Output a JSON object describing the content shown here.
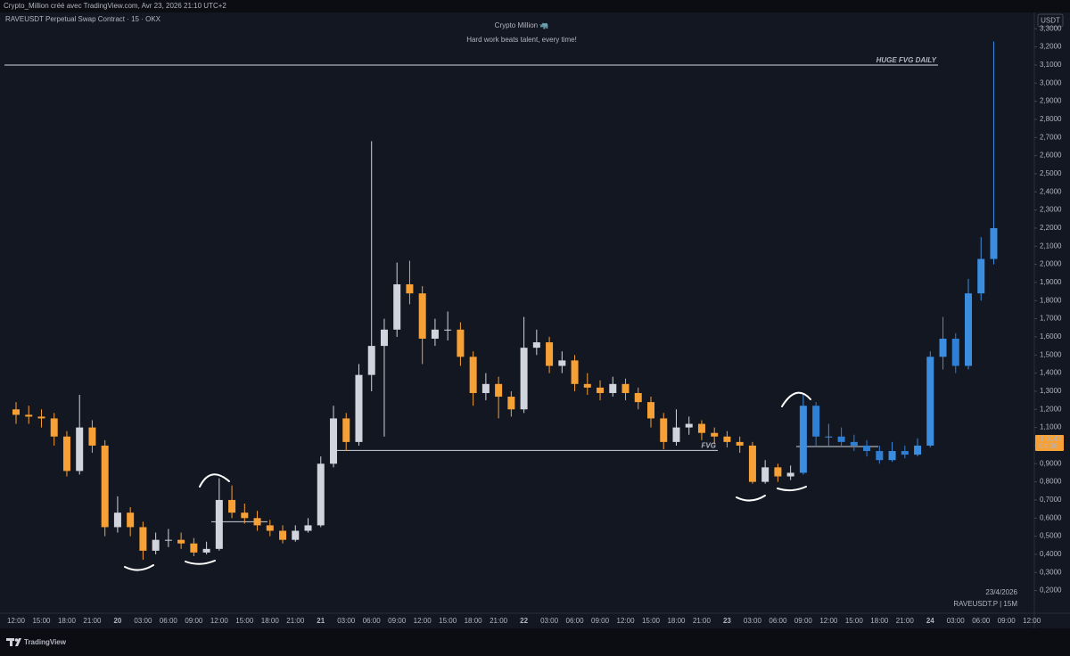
{
  "chart_data": {
    "type": "candlestick",
    "attribution": "Crypto_Million créé avec TradingView.com, Avr 23, 2026 21:10 UTC+2",
    "symbol": "RAVEUSDT Perpetual Swap Contract · 15 · OKX",
    "title": "Crypto Million 🦏",
    "subtitle": "Hard work beats talent, every time!",
    "currency": "USDT",
    "date_label": "23/4/2026",
    "symbol_short": "RAVEUSDT.P | 15M",
    "brand": "TradingView",
    "grid": false,
    "categories": [
      "12:00",
      null,
      "15:00",
      null,
      "18:00",
      null,
      "21:00",
      null,
      "20",
      null,
      "03:00",
      null,
      "06:00",
      null,
      "09:00",
      null,
      "12:00",
      null,
      "15:00",
      null,
      "18:00",
      null,
      "21:00",
      null,
      "21",
      null,
      "03:00",
      null,
      "06:00",
      null,
      "09:00",
      null,
      "12:00",
      null,
      "15:00",
      null,
      "18:00",
      null,
      "21:00",
      null,
      "22",
      null,
      "03:00",
      null,
      "06:00",
      null,
      "09:00",
      null,
      "12:00",
      null,
      "15:00",
      null,
      "18:00",
      null,
      "21:00",
      null,
      "23",
      null,
      "03:00",
      null,
      "06:00",
      null,
      "09:00",
      null,
      "12:00",
      null,
      "15:00",
      null,
      "18:00",
      null,
      "21:00",
      null,
      "24",
      null,
      "03:00",
      null,
      "06:00",
      null,
      "09:00",
      null,
      "12:00"
    ],
    "series": [
      {
        "up_color": "#d1d4dc",
        "down_color": "#f7a035",
        "open": [
          1.2,
          1.17,
          1.16,
          1.15,
          1.05,
          0.86,
          1.1,
          1.0,
          0.55,
          0.63,
          0.55,
          0.42,
          0.48,
          0.48,
          0.46,
          0.41,
          0.43,
          0.7,
          0.63,
          0.6,
          0.56,
          0.53,
          0.48,
          0.53,
          0.56,
          0.9,
          1.15,
          1.02,
          1.39,
          1.55,
          1.64,
          1.89,
          1.84,
          1.59,
          1.64,
          1.64,
          1.49,
          1.29,
          1.34,
          1.27,
          1.2,
          1.54,
          1.57,
          1.44,
          1.47,
          1.34,
          1.32,
          1.29,
          1.34,
          1.29,
          1.24,
          1.15,
          1.02,
          1.1,
          1.12,
          1.07,
          1.05,
          1.02,
          1.0,
          0.8,
          0.88,
          0.83,
          null,
          null,
          null,
          null,
          null,
          null,
          null,
          null,
          null,
          null,
          null,
          null,
          null,
          null,
          null,
          null,
          null,
          null,
          null
        ],
        "high": [
          1.24,
          1.22,
          1.2,
          1.18,
          1.08,
          1.28,
          1.14,
          1.03,
          0.72,
          0.66,
          0.58,
          0.52,
          0.54,
          0.52,
          0.49,
          0.47,
          0.82,
          0.78,
          0.68,
          0.64,
          0.59,
          0.56,
          0.56,
          0.6,
          0.94,
          1.22,
          1.18,
          1.45,
          2.68,
          1.7,
          2.01,
          2.02,
          1.88,
          1.7,
          1.74,
          1.68,
          1.52,
          1.4,
          1.38,
          1.3,
          1.71,
          1.64,
          1.6,
          1.52,
          1.5,
          1.4,
          1.36,
          1.38,
          1.37,
          1.32,
          1.27,
          1.18,
          1.2,
          1.16,
          1.14,
          1.1,
          1.08,
          1.05,
          1.02,
          0.92,
          0.9,
          0.89,
          null,
          null,
          null,
          null,
          null,
          null,
          null,
          null,
          null,
          null,
          null,
          null,
          null,
          null,
          null,
          null,
          null,
          null,
          null
        ],
        "low": [
          1.12,
          1.12,
          1.1,
          1.0,
          0.83,
          0.84,
          0.96,
          0.5,
          0.52,
          0.5,
          0.37,
          0.4,
          0.44,
          0.43,
          0.39,
          0.4,
          0.42,
          0.6,
          0.57,
          0.53,
          0.5,
          0.46,
          0.47,
          0.52,
          0.55,
          0.88,
          0.97,
          1.0,
          1.3,
          1.05,
          1.6,
          1.78,
          1.45,
          1.55,
          1.58,
          1.44,
          1.22,
          1.25,
          1.15,
          1.16,
          1.18,
          1.5,
          1.4,
          1.4,
          1.3,
          1.28,
          1.25,
          1.27,
          1.25,
          1.2,
          1.1,
          0.98,
          1.0,
          1.06,
          1.03,
          1.01,
          0.99,
          0.96,
          0.79,
          0.79,
          0.8,
          0.81,
          null,
          null,
          null,
          null,
          null,
          null,
          null,
          null,
          null,
          null,
          null,
          null,
          null,
          null,
          null,
          null,
          null,
          null,
          null
        ],
        "close": [
          1.17,
          1.16,
          1.15,
          1.05,
          0.86,
          1.1,
          1.0,
          0.55,
          0.63,
          0.55,
          0.42,
          0.48,
          0.48,
          0.46,
          0.41,
          0.43,
          0.7,
          0.63,
          0.6,
          0.56,
          0.53,
          0.48,
          0.53,
          0.56,
          0.9,
          1.15,
          1.02,
          1.39,
          1.55,
          1.64,
          1.89,
          1.84,
          1.59,
          1.64,
          1.64,
          1.49,
          1.29,
          1.34,
          1.27,
          1.2,
          1.54,
          1.57,
          1.44,
          1.47,
          1.34,
          1.32,
          1.29,
          1.34,
          1.29,
          1.24,
          1.15,
          1.02,
          1.1,
          1.12,
          1.07,
          1.05,
          1.02,
          1.0,
          0.8,
          0.88,
          0.83,
          0.85,
          null,
          null,
          null,
          null,
          null,
          null,
          null,
          null,
          null,
          null,
          null,
          null,
          null,
          null,
          null,
          null,
          null,
          null,
          null
        ]
      },
      {
        "up_color": "#3b8de0",
        "down_color": "#2f7fd4",
        "open": [
          null,
          null,
          null,
          null,
          null,
          null,
          null,
          null,
          null,
          null,
          null,
          null,
          null,
          null,
          null,
          null,
          null,
          null,
          null,
          null,
          null,
          null,
          null,
          null,
          null,
          null,
          null,
          null,
          null,
          null,
          null,
          null,
          null,
          null,
          null,
          null,
          null,
          null,
          null,
          null,
          null,
          null,
          null,
          null,
          null,
          null,
          null,
          null,
          null,
          null,
          null,
          null,
          null,
          null,
          null,
          null,
          null,
          null,
          null,
          null,
          null,
          null,
          0.85,
          1.22,
          1.05,
          1.05,
          1.02,
          1.0,
          0.97,
          0.92,
          0.97,
          0.95,
          1.0,
          1.49,
          1.59,
          1.44,
          1.84,
          2.03,
          null,
          null,
          null
        ],
        "high": [
          null,
          null,
          null,
          null,
          null,
          null,
          null,
          null,
          null,
          null,
          null,
          null,
          null,
          null,
          null,
          null,
          null,
          null,
          null,
          null,
          null,
          null,
          null,
          null,
          null,
          null,
          null,
          null,
          null,
          null,
          null,
          null,
          null,
          null,
          null,
          null,
          null,
          null,
          null,
          null,
          null,
          null,
          null,
          null,
          null,
          null,
          null,
          null,
          null,
          null,
          null,
          null,
          null,
          null,
          null,
          null,
          null,
          null,
          null,
          null,
          null,
          null,
          1.28,
          1.24,
          1.12,
          1.1,
          1.06,
          1.03,
          1.0,
          1.02,
          1.0,
          1.04,
          1.52,
          1.71,
          1.62,
          1.92,
          2.15,
          3.23,
          null,
          null,
          null
        ],
        "low": [
          null,
          null,
          null,
          null,
          null,
          null,
          null,
          null,
          null,
          null,
          null,
          null,
          null,
          null,
          null,
          null,
          null,
          null,
          null,
          null,
          null,
          null,
          null,
          null,
          null,
          null,
          null,
          null,
          null,
          null,
          null,
          null,
          null,
          null,
          null,
          null,
          null,
          null,
          null,
          null,
          null,
          null,
          null,
          null,
          null,
          null,
          null,
          null,
          null,
          null,
          null,
          null,
          null,
          null,
          null,
          null,
          null,
          null,
          null,
          null,
          null,
          null,
          0.84,
          1.0,
          1.0,
          0.99,
          0.97,
          0.94,
          0.9,
          0.91,
          0.93,
          0.94,
          0.99,
          1.42,
          1.4,
          1.42,
          1.8,
          2.0,
          null,
          null,
          null
        ],
        "close": [
          null,
          null,
          null,
          null,
          null,
          null,
          null,
          null,
          null,
          null,
          null,
          null,
          null,
          null,
          null,
          null,
          null,
          null,
          null,
          null,
          null,
          null,
          null,
          null,
          null,
          null,
          null,
          null,
          null,
          null,
          null,
          null,
          null,
          null,
          null,
          null,
          null,
          null,
          null,
          null,
          null,
          null,
          null,
          null,
          null,
          null,
          null,
          null,
          null,
          null,
          null,
          null,
          null,
          null,
          null,
          null,
          null,
          null,
          null,
          null,
          null,
          null,
          1.22,
          1.05,
          1.05,
          1.02,
          1.0,
          0.97,
          0.92,
          0.97,
          0.95,
          1.0,
          1.49,
          1.59,
          1.44,
          1.84,
          2.03,
          2.2,
          null,
          null,
          null
        ]
      }
    ],
    "ylim": [
      0.08,
      3.39
    ],
    "yticks": [
      {
        "value": 0.2,
        "label": "0,2000"
      },
      {
        "value": 0.3,
        "label": "0,3000"
      },
      {
        "value": 0.4,
        "label": "0,4000"
      },
      {
        "value": 0.5,
        "label": "0,5000"
      },
      {
        "value": 0.6,
        "label": "0,6000"
      },
      {
        "value": 0.7,
        "label": "0,7000"
      },
      {
        "value": 0.8,
        "label": "0,8000"
      },
      {
        "value": 0.9,
        "label": "0,9000"
      },
      {
        "value": 1.0,
        "label": "1,0000"
      },
      {
        "value": 1.1,
        "label": "1,1000"
      },
      {
        "value": 1.2,
        "label": "1,2000"
      },
      {
        "value": 1.3,
        "label": "1,3000"
      },
      {
        "value": 1.4,
        "label": "1,4000"
      },
      {
        "value": 1.5,
        "label": "1,5000"
      },
      {
        "value": 1.6,
        "label": "1,6000"
      },
      {
        "value": 1.7,
        "label": "1,7000"
      },
      {
        "value": 1.8,
        "label": "1,8000"
      },
      {
        "value": 1.9,
        "label": "1,9000"
      },
      {
        "value": 2.0,
        "label": "2,0000"
      },
      {
        "value": 2.1,
        "label": "2,1000"
      },
      {
        "value": 2.2,
        "label": "2,2000"
      },
      {
        "value": 2.3,
        "label": "2,3000"
      },
      {
        "value": 2.4,
        "label": "2,4000"
      },
      {
        "value": 2.5,
        "label": "2,5000"
      },
      {
        "value": 2.6,
        "label": "2,6000"
      },
      {
        "value": 2.7,
        "label": "2,7000"
      },
      {
        "value": 2.8,
        "label": "2,8000"
      },
      {
        "value": 2.9,
        "label": "2,9000"
      },
      {
        "value": 3.0,
        "label": "3,0000"
      },
      {
        "value": 3.1,
        "label": "3,1000"
      },
      {
        "value": 3.2,
        "label": "3,2000"
      },
      {
        "value": 3.3,
        "label": "3,3000"
      }
    ],
    "levels": [
      {
        "value": 3.1,
        "label": "HUGE FVG DAILY"
      },
      {
        "value": 0.973,
        "label": "FVG"
      },
      {
        "value": 0.58
      },
      {
        "value": 0.995
      }
    ],
    "last_price": {
      "value": 1.0147,
      "label": "1,0147",
      "countdown": "04:38",
      "color": "#f7a035"
    }
  }
}
